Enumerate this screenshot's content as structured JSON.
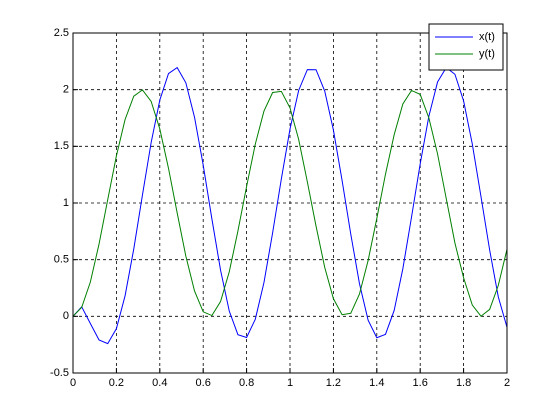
{
  "chart_data": {
    "type": "line",
    "x": [
      0,
      0.04,
      0.08,
      0.12,
      0.16,
      0.2,
      0.24,
      0.28,
      0.32,
      0.36,
      0.4,
      0.44,
      0.48,
      0.52,
      0.56,
      0.6,
      0.64,
      0.68,
      0.72,
      0.76,
      0.8,
      0.84,
      0.88,
      0.92,
      0.96,
      1,
      1.04,
      1.08,
      1.12,
      1.16,
      1.2,
      1.24,
      1.28,
      1.32,
      1.36,
      1.4,
      1.44,
      1.48,
      1.52,
      1.56,
      1.6,
      1.64,
      1.68,
      1.72,
      1.76,
      1.8,
      1.84,
      1.88,
      1.92,
      1.96,
      2
    ],
    "series": [
      {
        "name": "x(t)",
        "color": "#0000ff",
        "values": [
          0,
          0.084,
          -0.063,
          -0.209,
          -0.241,
          -0.109,
          0.182,
          0.594,
          1.07,
          1.532,
          1.908,
          2.142,
          2.195,
          2.061,
          1.757,
          1.335,
          0.86,
          0.407,
          0.047,
          -0.162,
          -0.187,
          -0.026,
          0.298,
          0.738,
          1.211,
          1.653,
          1.994,
          2.177,
          2.176,
          1.988,
          1.644,
          1.199,
          0.726,
          0.29,
          -0.034,
          -0.189,
          -0.159,
          0.052,
          0.42,
          0.876,
          1.346,
          1.766,
          2.068,
          2.195,
          2.136,
          1.901,
          1.521,
          1.058,
          0.586,
          0.171,
          -0.096
        ]
      },
      {
        "name": "y(t)",
        "color": "#008000",
        "values": [
          0,
          0.079,
          0.303,
          0.638,
          1.029,
          1.416,
          1.737,
          1.942,
          1.998,
          1.897,
          1.654,
          1.307,
          0.913,
          0.531,
          0.224,
          0.04,
          0.007,
          0.131,
          0.392,
          0.753,
          1.146,
          1.519,
          1.811,
          1.975,
          1.985,
          1.839,
          1.56,
          1.186,
          0.796,
          0.432,
          0.156,
          0.014,
          0.027,
          0.196,
          0.493,
          0.863,
          1.254,
          1.602,
          1.874,
          1.993,
          1.958,
          1.75,
          1.433,
          1.039,
          0.647,
          0.34,
          0.1,
          0.001,
          0.061,
          0.273,
          0.592
        ]
      }
    ],
    "xlim": [
      0,
      2
    ],
    "xticks": [
      0,
      0.2,
      0.4,
      0.6,
      0.8,
      1,
      1.2,
      1.4,
      1.6,
      1.8,
      2
    ],
    "ylim": [
      -0.5,
      2.5
    ],
    "yticks": [
      -0.5,
      0,
      0.5,
      1,
      1.5,
      2,
      2.5
    ],
    "grid": true,
    "legend": "northeast"
  }
}
